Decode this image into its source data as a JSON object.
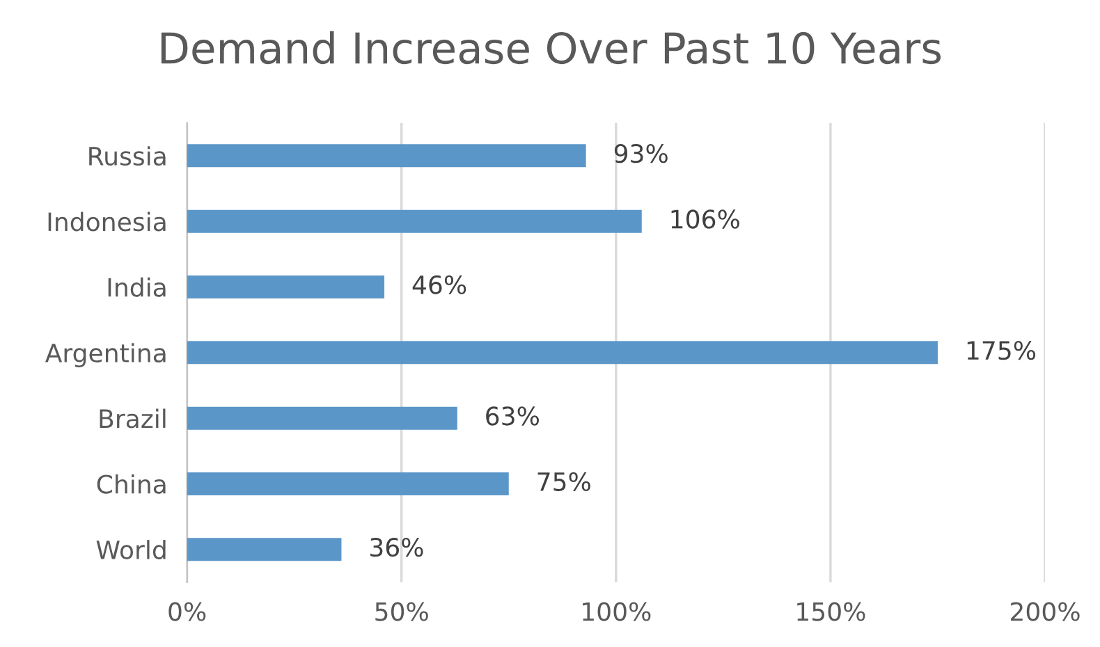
{
  "chart_data": {
    "type": "bar",
    "orientation": "horizontal",
    "title": "Demand Increase Over Past 10 Years",
    "categories": [
      "Russia",
      "Indonesia",
      "India",
      "Argentina",
      "Brazil",
      "China",
      "World"
    ],
    "values": [
      93,
      106,
      46,
      175,
      63,
      75,
      36
    ],
    "value_labels": [
      "93%",
      "106%",
      "46%",
      "175%",
      "63%",
      "75%",
      "36%"
    ],
    "color": "#5b96c9",
    "xlim": [
      0,
      200
    ],
    "xticks": [
      {
        "value": 0,
        "label": "0%"
      },
      {
        "value": 50,
        "label": "50%"
      },
      {
        "value": 100,
        "label": "100%"
      },
      {
        "value": 150,
        "label": "150%"
      },
      {
        "value": 200,
        "label": "200%"
      }
    ],
    "grid": "x",
    "legend": false
  }
}
